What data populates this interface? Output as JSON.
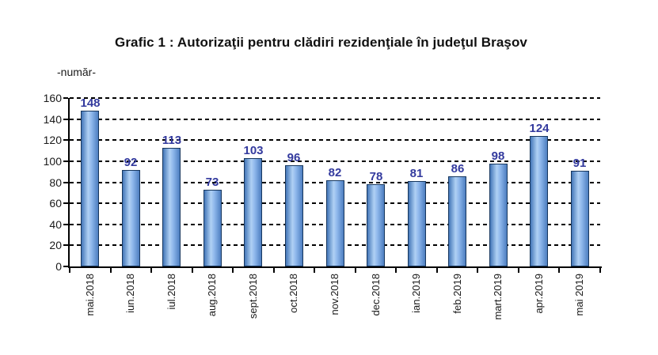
{
  "chart_data": {
    "type": "bar",
    "title": "Grafic 1 : Autorizaţii pentru clădiri rezidenţiale în judeţul Braşov",
    "unit_label": "-număr-",
    "categories": [
      "mai.2018",
      "iun.2018",
      "iul.2018",
      "aug.2018",
      "sept.2018",
      "oct.2018",
      "nov.2018",
      "dec.2018",
      "ian.2019",
      "feb.2019",
      "mart.2019",
      "apr.2019",
      "mai 2019"
    ],
    "values": [
      148,
      92,
      113,
      73,
      103,
      96,
      82,
      78,
      81,
      86,
      98,
      124,
      91
    ],
    "xlabel": "",
    "ylabel": "",
    "ylim": [
      0,
      160
    ],
    "ytick_step": 20,
    "yticks": [
      0,
      20,
      40,
      60,
      80,
      100,
      120,
      140,
      160
    ],
    "grid": "horizontal-dashed",
    "legend": "none",
    "colors": {
      "bar_gradient_left": "#4376b8",
      "bar_gradient_light": "#b0d1f4",
      "bar_gradient_mid": "#8fb8ec",
      "bar_gradient_right": "#4d7ec0",
      "bar_border": "#17375e",
      "value_label": "#333a9e",
      "axis": "#000000",
      "text": "#1a1a1a"
    }
  }
}
